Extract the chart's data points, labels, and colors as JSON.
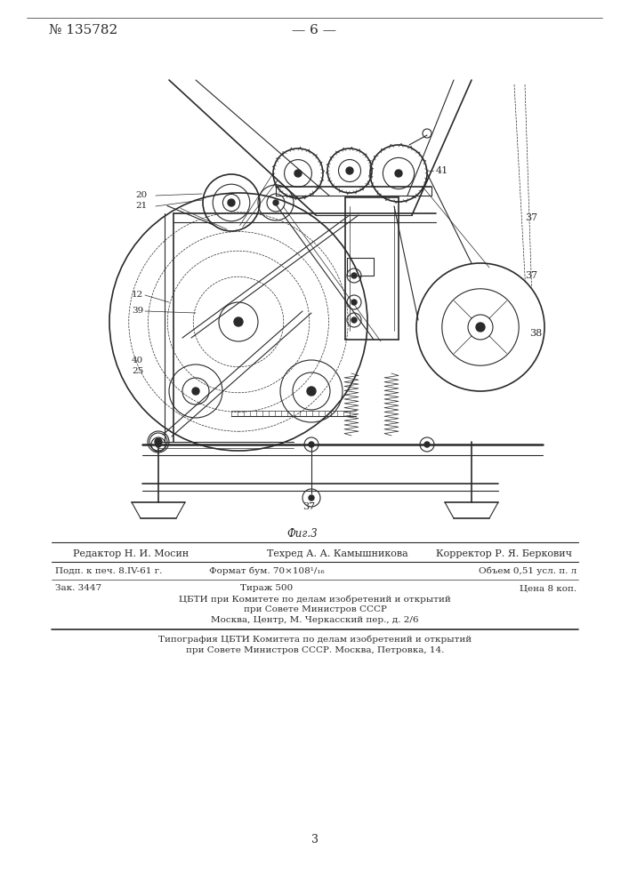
{
  "patent_number": "№ 135782",
  "page_number": "— 6 —",
  "fig_caption": "Фиг.3",
  "editor_line": "Редактор Н. И. Мосин",
  "techred_line": "Техред А. А. Камышникова",
  "corrector_line": "Корректор Р. Я. Беркович",
  "line1_col1": "Подп. к печ. 8.IV-61 г.",
  "line1_col2": "Формат бум. 70×108¹/₁₆",
  "line1_col3": "Объем 0,51 усл. п. л",
  "line2_col1": "Зак. 3447",
  "line2_col2": "Тираж 500",
  "line2_col3": "Цена 8 коп.",
  "org_line1": "ЦБТИ при Комитете по делам изобретений и открытий",
  "org_line2": "при Совете Министров СССР",
  "org_line3": "Москва, Центр, М. Черкасский пер., д. 2/6",
  "print_line1": "Типография ЦБТИ Комитета по делам изобретений и открытий",
  "print_line2": "при Совете Министров СССР. Москва, Петровка, 14.",
  "page_num": "3",
  "bg_color": "#ffffff",
  "drawing_color": "#2a2a2a"
}
